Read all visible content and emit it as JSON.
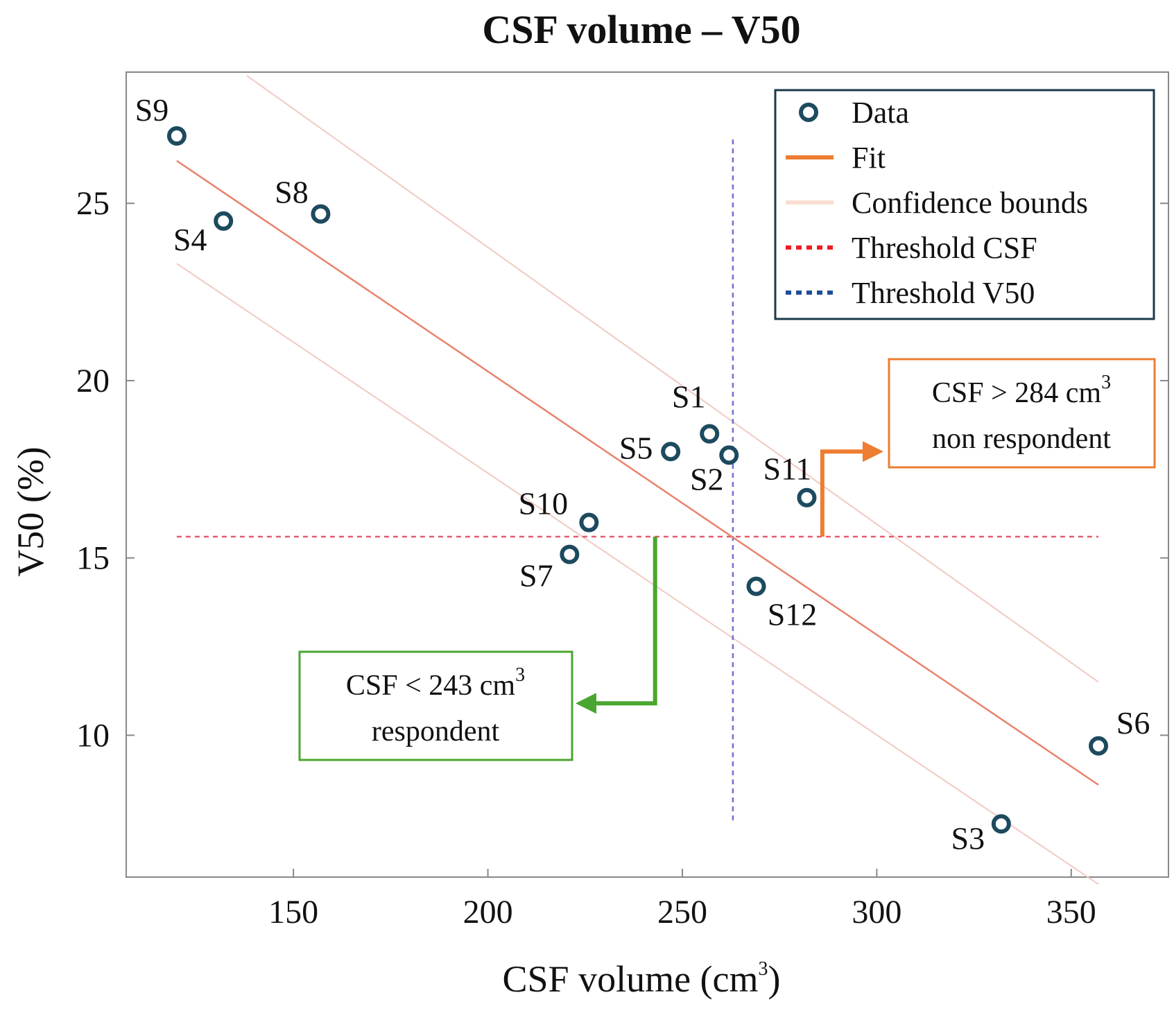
{
  "chart_data": {
    "type": "scatter",
    "title": "CSF volume – V50",
    "xlabel": "CSF volume (cm",
    "xlabel_sup": "3",
    "xlabel_tail": ")",
    "ylabel": "V50 (%)",
    "xlim": [
      107,
      375
    ],
    "ylim": [
      6,
      28.7
    ],
    "xticks": [
      150,
      200,
      250,
      300,
      350
    ],
    "yticks": [
      10,
      15,
      20,
      25
    ],
    "points": [
      {
        "label": "S1",
        "x": 257,
        "y": 18.5
      },
      {
        "label": "S2",
        "x": 262,
        "y": 17.9
      },
      {
        "label": "S3",
        "x": 332,
        "y": 7.5
      },
      {
        "label": "S4",
        "x": 132,
        "y": 24.5
      },
      {
        "label": "S5",
        "x": 247,
        "y": 18.0
      },
      {
        "label": "S6",
        "x": 357,
        "y": 9.7
      },
      {
        "label": "S7",
        "x": 221,
        "y": 15.1
      },
      {
        "label": "S8",
        "x": 157,
        "y": 24.7
      },
      {
        "label": "S9",
        "x": 120,
        "y": 26.9
      },
      {
        "label": "S10",
        "x": 226,
        "y": 16.0
      },
      {
        "label": "S11",
        "x": 282,
        "y": 16.7
      },
      {
        "label": "S12",
        "x": 269,
        "y": 14.2
      }
    ],
    "fit": [
      {
        "x": 120,
        "y": 26.2
      },
      {
        "x": 357,
        "y": 8.6
      }
    ],
    "upper_bound": [
      {
        "x": 138,
        "y": 28.6
      },
      {
        "x": 357,
        "y": 11.5
      }
    ],
    "lower_bound": [
      {
        "x": 120,
        "y": 23.3
      },
      {
        "x": 357,
        "y": 5.8
      }
    ],
    "threshold_csf": {
      "y": 15.6,
      "x_from": 120,
      "x_to": 357
    },
    "threshold_v50": {
      "x": 263,
      "y_from": 7.6,
      "y_to": 26.8
    },
    "legend": {
      "position": "top-right",
      "entries": [
        {
          "label": "Data",
          "style": "marker"
        },
        {
          "label": "Fit",
          "style": "line"
        },
        {
          "label": "Confidence bounds",
          "style": "line"
        },
        {
          "label": "Threshold CSF",
          "style": "dotted"
        },
        {
          "label": "Threshold V50",
          "style": "dotted"
        }
      ]
    },
    "annotations": [
      {
        "id": "non-respondent",
        "line1": "CSF > 284 cm",
        "line1_sup": "3",
        "line2": "non respondent",
        "from_x": 286,
        "from_y": 15.6,
        "corner_y": 18.0
      },
      {
        "id": "respondent",
        "line1": "CSF < 243 cm",
        "line1_sup": "3",
        "line2": "respondent",
        "from_x": 243,
        "from_y": 15.6,
        "corner_y": 10.9
      }
    ],
    "colors": {
      "marker": "#1d4a5e",
      "fit": "#e8826c",
      "bounds": "#f1c9c2",
      "legend_bounds": "#f8dfd2",
      "threshold_csf": "#e45b6e",
      "threshold_v50": "#6f6fd6",
      "legend_threshold_csf": "#ee1c25",
      "legend_threshold_v50": "#1f4e99",
      "legend_fit": "#ed7d31",
      "annot_orange": "#ed7d31",
      "annot_green": "#4aa62f",
      "legend_border": "#1a3a4a",
      "axis": "#888888"
    }
  }
}
